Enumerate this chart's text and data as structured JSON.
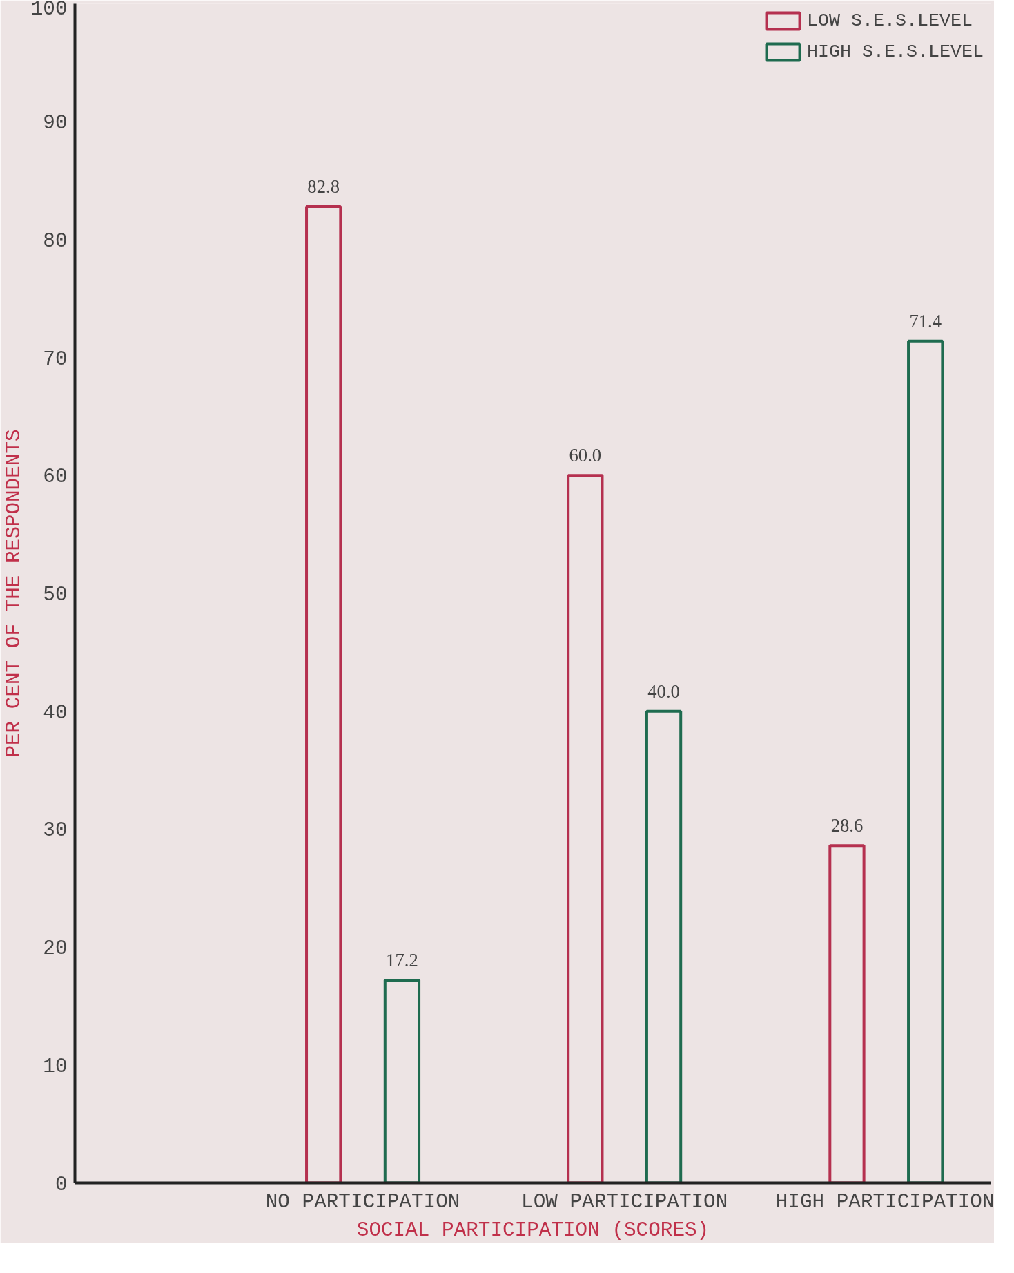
{
  "chart_data": {
    "type": "bar",
    "xlabel": "SOCIAL PARTICIPATION (SCORES)",
    "ylabel": "PER CENT OF THE RESPONDENTS",
    "categories": [
      "NO PARTICIPATION",
      "LOW PARTICIPATION",
      "HIGH PARTICIPATION"
    ],
    "series": [
      {
        "name": "LOW S.E.S.LEVEL",
        "color": "#b5304f",
        "values": [
          82.8,
          60.0,
          28.6
        ],
        "value_labels": [
          "82.8",
          "60.0",
          "28.6"
        ]
      },
      {
        "name": "HIGH S.E.S.LEVEL",
        "color": "#1f6b4f",
        "values": [
          17.2,
          40.0,
          71.4
        ],
        "value_labels": [
          "17.2",
          "40.0",
          "71.4"
        ]
      }
    ],
    "ylim": [
      0,
      100
    ],
    "yticks": [
      0,
      10,
      20,
      30,
      40,
      50,
      60,
      70,
      80,
      90,
      100
    ],
    "grid": false,
    "legend": "top right"
  }
}
